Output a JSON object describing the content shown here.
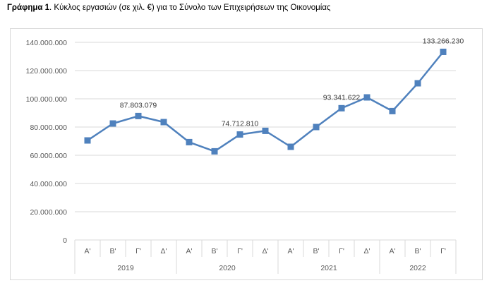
{
  "caption": {
    "label": "Γράφημα 1",
    "text": ". Κύκλος εργασιών (σε χιλ. €) για το Σύνολο των Επιχειρήσεων της Οικονομίας"
  },
  "colors": {
    "series": "#4f81bd",
    "grid": "#d9d9d9",
    "text": "#595959"
  },
  "chart_data": {
    "type": "line",
    "ylim": [
      0,
      140000000
    ],
    "yticks": [
      0,
      20000000,
      40000000,
      60000000,
      80000000,
      100000000,
      120000000,
      140000000
    ],
    "ytick_labels": [
      "0",
      "20.000.000",
      "40.000.000",
      "60.000.000",
      "80.000.000",
      "100.000.000",
      "120.000.000",
      "140.000.000"
    ],
    "grid": true,
    "legend": "none",
    "categories": [
      "Α'",
      "Β'",
      "Γ'",
      "Δ'",
      "Α'",
      "Β'",
      "Γ'",
      "Δ'",
      "Α'",
      "Β'",
      "Γ'",
      "Δ'",
      "Α'",
      "Β'",
      "Γ'"
    ],
    "groups": [
      {
        "label": "2019",
        "count": 4
      },
      {
        "label": "2020",
        "count": 4
      },
      {
        "label": "2021",
        "count": 4
      },
      {
        "label": "2022",
        "count": 3
      }
    ],
    "series": [
      {
        "values": [
          70500000,
          82500000,
          87803079,
          83500000,
          69300000,
          62800000,
          74712810,
          77300000,
          66000000,
          80000000,
          93341622,
          101000000,
          91300000,
          111000000,
          133266230
        ]
      }
    ],
    "data_labels": [
      {
        "index": 2,
        "text": "87.803.079"
      },
      {
        "index": 6,
        "text": "74.712.810"
      },
      {
        "index": 10,
        "text": "93.341.622"
      },
      {
        "index": 14,
        "text": "133.266.230"
      }
    ]
  }
}
